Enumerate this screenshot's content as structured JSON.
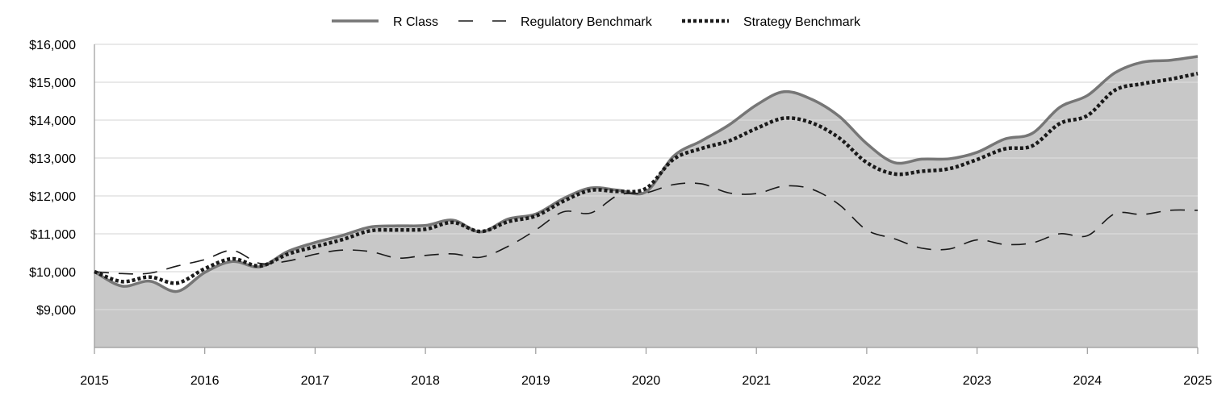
{
  "chart_data": {
    "type": "line",
    "title": "",
    "xlabel": "",
    "ylabel": "",
    "xlim": [
      2015,
      2025
    ],
    "ylim": [
      8000,
      16000
    ],
    "x_ticks": [
      "2015",
      "2016",
      "2017",
      "2018",
      "2019",
      "2020",
      "2021",
      "2022",
      "2023",
      "2024",
      "2025"
    ],
    "y_ticks": [
      {
        "value": 9000,
        "label": "$9,000"
      },
      {
        "value": 10000,
        "label": "$10,000"
      },
      {
        "value": 11000,
        "label": "$11,000"
      },
      {
        "value": 12000,
        "label": "$12,000"
      },
      {
        "value": 13000,
        "label": "$13,000"
      },
      {
        "value": 14000,
        "label": "$14,000"
      },
      {
        "value": 15000,
        "label": "$15,000"
      },
      {
        "value": 16000,
        "label": "$16,000"
      }
    ],
    "grid": "horizontal",
    "legend_position": "top-center",
    "series": [
      {
        "name": "R Class",
        "style": "solid-area",
        "color": "#767676",
        "fill": "#c8c8c8",
        "points": [
          [
            2015.0,
            10000
          ],
          [
            2015.25,
            9620
          ],
          [
            2015.5,
            9750
          ],
          [
            2015.75,
            9480
          ],
          [
            2016.0,
            9980
          ],
          [
            2016.25,
            10270
          ],
          [
            2016.5,
            10130
          ],
          [
            2016.75,
            10530
          ],
          [
            2017.0,
            10770
          ],
          [
            2017.25,
            10960
          ],
          [
            2017.5,
            11180
          ],
          [
            2017.75,
            11210
          ],
          [
            2018.0,
            11220
          ],
          [
            2018.25,
            11360
          ],
          [
            2018.5,
            11050
          ],
          [
            2018.75,
            11390
          ],
          [
            2019.0,
            11520
          ],
          [
            2019.25,
            11930
          ],
          [
            2019.5,
            12210
          ],
          [
            2019.75,
            12150
          ],
          [
            2020.0,
            12110
          ],
          [
            2020.25,
            13050
          ],
          [
            2020.5,
            13450
          ],
          [
            2020.75,
            13870
          ],
          [
            2021.0,
            14400
          ],
          [
            2021.25,
            14750
          ],
          [
            2021.5,
            14550
          ],
          [
            2021.75,
            14100
          ],
          [
            2022.0,
            13380
          ],
          [
            2022.25,
            12880
          ],
          [
            2022.5,
            12970
          ],
          [
            2022.75,
            12980
          ],
          [
            2023.0,
            13150
          ],
          [
            2023.25,
            13500
          ],
          [
            2023.5,
            13650
          ],
          [
            2023.75,
            14340
          ],
          [
            2024.0,
            14650
          ],
          [
            2024.25,
            15250
          ],
          [
            2024.5,
            15530
          ],
          [
            2024.75,
            15580
          ],
          [
            2025.0,
            15680
          ]
        ]
      },
      {
        "name": "Regulatory Benchmark",
        "style": "dashed",
        "color": "#1a1a1a",
        "points": [
          [
            2015.0,
            10000
          ],
          [
            2015.25,
            9950
          ],
          [
            2015.5,
            9960
          ],
          [
            2015.75,
            10150
          ],
          [
            2016.0,
            10320
          ],
          [
            2016.25,
            10560
          ],
          [
            2016.5,
            10220
          ],
          [
            2016.75,
            10280
          ],
          [
            2017.0,
            10460
          ],
          [
            2017.25,
            10570
          ],
          [
            2017.5,
            10530
          ],
          [
            2017.75,
            10360
          ],
          [
            2018.0,
            10430
          ],
          [
            2018.25,
            10470
          ],
          [
            2018.5,
            10380
          ],
          [
            2018.75,
            10670
          ],
          [
            2019.0,
            11100
          ],
          [
            2019.25,
            11580
          ],
          [
            2019.5,
            11550
          ],
          [
            2019.75,
            12020
          ],
          [
            2020.0,
            12080
          ],
          [
            2020.25,
            12300
          ],
          [
            2020.5,
            12320
          ],
          [
            2020.75,
            12080
          ],
          [
            2021.0,
            12060
          ],
          [
            2021.25,
            12260
          ],
          [
            2021.5,
            12180
          ],
          [
            2021.75,
            11770
          ],
          [
            2022.0,
            11100
          ],
          [
            2022.25,
            10870
          ],
          [
            2022.5,
            10620
          ],
          [
            2022.75,
            10600
          ],
          [
            2023.0,
            10840
          ],
          [
            2023.25,
            10720
          ],
          [
            2023.5,
            10760
          ],
          [
            2023.75,
            11000
          ],
          [
            2024.0,
            10950
          ],
          [
            2024.25,
            11530
          ],
          [
            2024.5,
            11510
          ],
          [
            2024.75,
            11620
          ],
          [
            2025.0,
            11620
          ]
        ]
      },
      {
        "name": "Strategy Benchmark",
        "style": "dotted",
        "color": "#1a1a1a",
        "points": [
          [
            2015.0,
            10000
          ],
          [
            2015.25,
            9740
          ],
          [
            2015.5,
            9860
          ],
          [
            2015.75,
            9700
          ],
          [
            2016.0,
            10080
          ],
          [
            2016.25,
            10340
          ],
          [
            2016.5,
            10150
          ],
          [
            2016.75,
            10460
          ],
          [
            2017.0,
            10660
          ],
          [
            2017.25,
            10850
          ],
          [
            2017.5,
            11080
          ],
          [
            2017.75,
            11100
          ],
          [
            2018.0,
            11120
          ],
          [
            2018.25,
            11300
          ],
          [
            2018.5,
            11060
          ],
          [
            2018.75,
            11320
          ],
          [
            2019.0,
            11470
          ],
          [
            2019.25,
            11860
          ],
          [
            2019.5,
            12150
          ],
          [
            2019.75,
            12120
          ],
          [
            2020.0,
            12200
          ],
          [
            2020.25,
            12970
          ],
          [
            2020.5,
            13250
          ],
          [
            2020.75,
            13450
          ],
          [
            2021.0,
            13780
          ],
          [
            2021.25,
            14050
          ],
          [
            2021.5,
            13930
          ],
          [
            2021.75,
            13530
          ],
          [
            2022.0,
            12880
          ],
          [
            2022.25,
            12580
          ],
          [
            2022.5,
            12650
          ],
          [
            2022.75,
            12720
          ],
          [
            2023.0,
            12960
          ],
          [
            2023.25,
            13240
          ],
          [
            2023.5,
            13320
          ],
          [
            2023.75,
            13910
          ],
          [
            2024.0,
            14120
          ],
          [
            2024.25,
            14790
          ],
          [
            2024.5,
            14960
          ],
          [
            2024.75,
            15080
          ],
          [
            2025.0,
            15230
          ]
        ]
      }
    ]
  }
}
